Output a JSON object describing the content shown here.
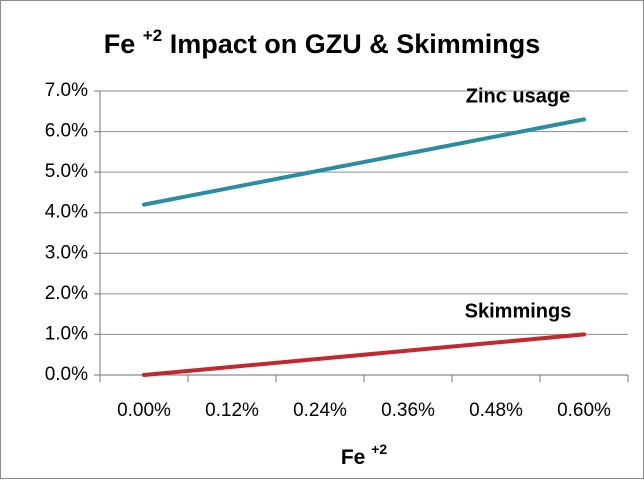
{
  "chart_data": {
    "type": "line",
    "title": {
      "base": "Fe",
      "superscript": "+2",
      "rest": "Impact on GZU & Skimmings"
    },
    "x_label": {
      "base": "Fe",
      "superscript": "+2"
    },
    "categories": [
      "0.00%",
      "0.12%",
      "0.24%",
      "0.36%",
      "0.48%",
      "0.60%"
    ],
    "series": [
      {
        "name": "Zinc usage",
        "color": "#2b8da1",
        "values": [
          4.2,
          4.62,
          5.04,
          5.46,
          5.88,
          6.3
        ]
      },
      {
        "name": "Skimmings",
        "color": "#c3272f",
        "values": [
          0,
          0.2,
          0.4,
          0.6,
          0.8,
          1.0
        ]
      }
    ],
    "ylim": [
      0,
      7
    ],
    "yticks": [
      {
        "value": 0,
        "label": "0.0%"
      },
      {
        "value": 1,
        "label": "1.0%"
      },
      {
        "value": 2,
        "label": "2.0%"
      },
      {
        "value": 3,
        "label": "3.0%"
      },
      {
        "value": 4,
        "label": "4.0%"
      },
      {
        "value": 5,
        "label": "5.0%"
      },
      {
        "value": 6,
        "label": "6.0%"
      },
      {
        "value": 7,
        "label": "7.0%"
      }
    ],
    "grid": true
  }
}
